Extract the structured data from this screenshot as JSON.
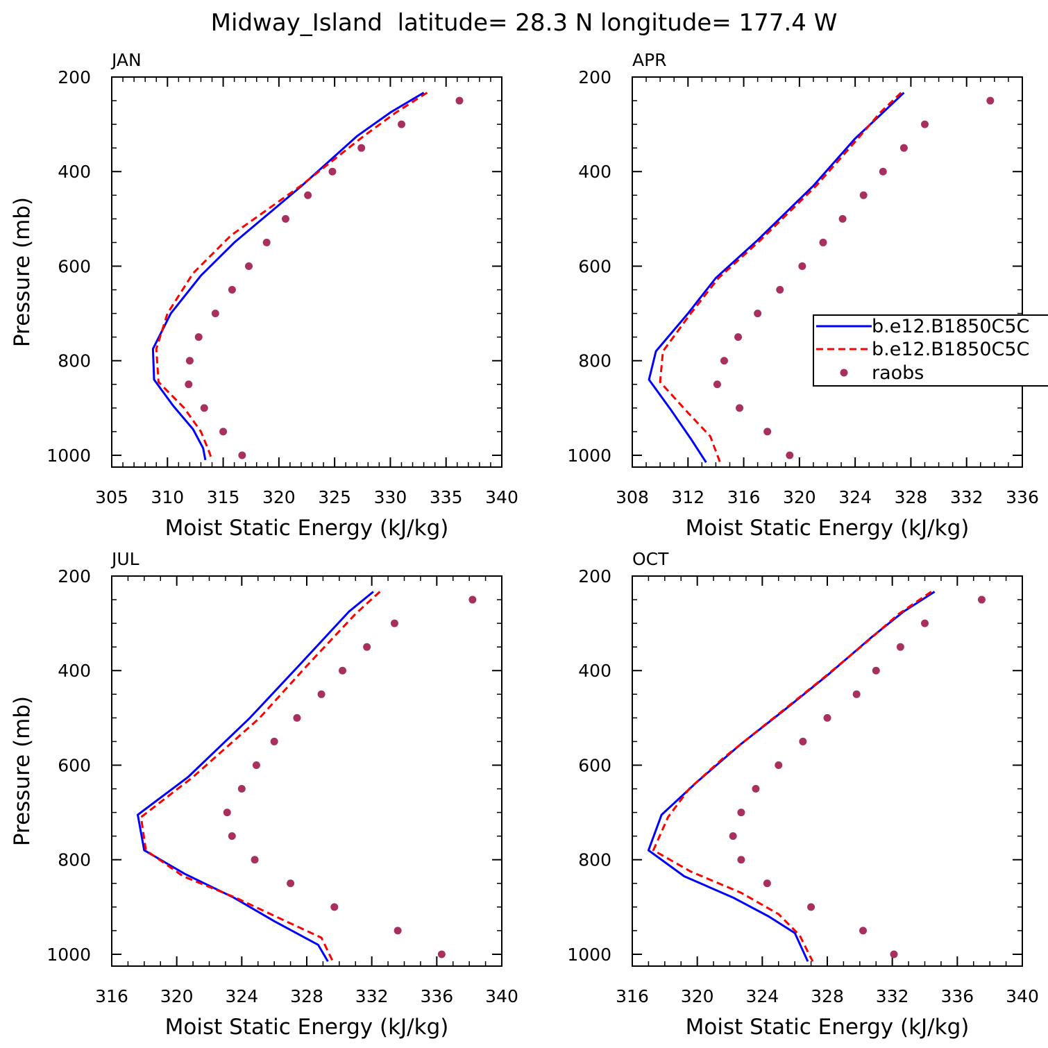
{
  "figure": {
    "title": "Midway_Island  latitude= 28.3 N longitude= 177.4 W"
  },
  "legend": {
    "entries": [
      {
        "label": "b.e12.B1850C5C",
        "color": "#0000ff",
        "style": "solid"
      },
      {
        "label": "b.e12.B1850C5C",
        "color": "#ff0000",
        "style": "dashed"
      },
      {
        "label": "raobs",
        "color": "#a8305f",
        "style": "dot"
      }
    ]
  },
  "chart_data": [
    {
      "type": "line",
      "panel": "JAN",
      "xlabel": "Moist Static Energy (kJ/kg)",
      "ylabel": "Pressure (mb)",
      "xlim": [
        305,
        340
      ],
      "xticks": [
        305,
        310,
        315,
        320,
        325,
        330,
        335,
        340
      ],
      "xminor": 1,
      "ylim": [
        1025,
        200
      ],
      "yticks": [
        200,
        400,
        600,
        800,
        1000
      ],
      "yminor": 50,
      "series": [
        {
          "color": "#0000ff",
          "style": "solid",
          "points": [
            [
              333,
              233
            ],
            [
              330,
              275
            ],
            [
              327,
              325
            ],
            [
              322,
              431
            ],
            [
              316,
              550
            ],
            [
              313,
              620
            ],
            [
              310.3,
              700
            ],
            [
              308.7,
              775
            ],
            [
              308.8,
              840
            ],
            [
              310.5,
              895
            ],
            [
              312.3,
              945
            ],
            [
              313.2,
              985
            ],
            [
              313.4,
              1010
            ]
          ]
        },
        {
          "color": "#ff0000",
          "style": "dashed",
          "points": [
            [
              333.3,
              233
            ],
            [
              330.5,
              275
            ],
            [
              327.6,
              325
            ],
            [
              321.9,
              431
            ],
            [
              315.7,
              535
            ],
            [
              312.3,
              615
            ],
            [
              310,
              700
            ],
            [
              309,
              775
            ],
            [
              309.2,
              845
            ],
            [
              311.5,
              900
            ],
            [
              313,
              950
            ],
            [
              313.7,
              990
            ],
            [
              314,
              1010
            ]
          ]
        },
        {
          "color": "#a8305f",
          "style": "dot",
          "points": [
            [
              336.2,
              250
            ],
            [
              331,
              300
            ],
            [
              327.4,
              350
            ],
            [
              324.8,
              400
            ],
            [
              322.6,
              450
            ],
            [
              320.6,
              500
            ],
            [
              318.9,
              550
            ],
            [
              317.3,
              600
            ],
            [
              315.8,
              650
            ],
            [
              314.3,
              700
            ],
            [
              312.8,
              750
            ],
            [
              312,
              800
            ],
            [
              311.9,
              850
            ],
            [
              313.3,
              900
            ],
            [
              315,
              950
            ],
            [
              316.7,
              1000
            ]
          ]
        }
      ]
    },
    {
      "type": "line",
      "panel": "APR",
      "xlabel": "Moist Static Energy (kJ/kg)",
      "ylabel": "",
      "xlim": [
        308,
        336
      ],
      "xticks": [
        308,
        312,
        316,
        320,
        324,
        328,
        332,
        336
      ],
      "xminor": 1,
      "ylim": [
        1025,
        200
      ],
      "yticks": [
        200,
        400,
        600,
        800,
        1000
      ],
      "yminor": 50,
      "series": [
        {
          "color": "#0000ff",
          "style": "solid",
          "points": [
            [
              327.5,
              233
            ],
            [
              326,
              275
            ],
            [
              324,
              330
            ],
            [
              321,
              430
            ],
            [
              317,
              545
            ],
            [
              314,
              625
            ],
            [
              312,
              700
            ],
            [
              309.7,
              780
            ],
            [
              309.2,
              840
            ],
            [
              310.8,
              905
            ],
            [
              312.2,
              965
            ],
            [
              313.3,
              1015
            ]
          ]
        },
        {
          "color": "#ff0000",
          "style": "dashed",
          "points": [
            [
              327.3,
              233
            ],
            [
              325.8,
              275
            ],
            [
              324.2,
              330
            ],
            [
              321.2,
              430
            ],
            [
              317.2,
              545
            ],
            [
              314.2,
              625
            ],
            [
              312.2,
              700
            ],
            [
              310.2,
              780
            ],
            [
              310,
              845
            ],
            [
              312,
              910
            ],
            [
              313.6,
              960
            ],
            [
              314.3,
              1015
            ]
          ]
        },
        {
          "color": "#a8305f",
          "style": "dot",
          "points": [
            [
              333.7,
              250
            ],
            [
              329,
              300
            ],
            [
              327.5,
              350
            ],
            [
              326,
              400
            ],
            [
              324.6,
              450
            ],
            [
              323.1,
              500
            ],
            [
              321.7,
              550
            ],
            [
              320.2,
              600
            ],
            [
              318.6,
              650
            ],
            [
              317,
              700
            ],
            [
              315.6,
              750
            ],
            [
              314.6,
              800
            ],
            [
              314.1,
              850
            ],
            [
              315.7,
              900
            ],
            [
              317.7,
              950
            ],
            [
              319.3,
              1000
            ]
          ]
        }
      ]
    },
    {
      "type": "line",
      "panel": "JUL",
      "xlabel": "Moist Static Energy (kJ/kg)",
      "ylabel": "Pressure (mb)",
      "xlim": [
        316,
        340
      ],
      "xticks": [
        316,
        320,
        324,
        328,
        332,
        336,
        340
      ],
      "xminor": 1,
      "ylim": [
        1025,
        200
      ],
      "yticks": [
        200,
        400,
        600,
        800,
        1000
      ],
      "yminor": 50,
      "series": [
        {
          "color": "#0000ff",
          "style": "solid",
          "points": [
            [
              332.1,
              233
            ],
            [
              330.6,
              275
            ],
            [
              327.5,
              390
            ],
            [
              324.5,
              500
            ],
            [
              320.7,
              625
            ],
            [
              317.6,
              705
            ],
            [
              318,
              780
            ],
            [
              320.5,
              830
            ],
            [
              323.5,
              880
            ],
            [
              326,
              930
            ],
            [
              328.7,
              980
            ],
            [
              329.3,
              1015
            ]
          ]
        },
        {
          "color": "#ff0000",
          "style": "dashed",
          "points": [
            [
              332.5,
              233
            ],
            [
              331,
              280
            ],
            [
              328,
              390
            ],
            [
              325.1,
              500
            ],
            [
              321,
              625
            ],
            [
              317.8,
              710
            ],
            [
              318.1,
              780
            ],
            [
              320.4,
              835
            ],
            [
              323.6,
              880
            ],
            [
              326.4,
              925
            ],
            [
              328.9,
              965
            ],
            [
              329.6,
              1015
            ]
          ]
        },
        {
          "color": "#a8305f",
          "style": "dot",
          "points": [
            [
              338.2,
              250
            ],
            [
              333.4,
              300
            ],
            [
              331.7,
              350
            ],
            [
              330.2,
              400
            ],
            [
              328.9,
              450
            ],
            [
              327.4,
              500
            ],
            [
              326,
              550
            ],
            [
              324.9,
              600
            ],
            [
              324,
              650
            ],
            [
              323.1,
              700
            ],
            [
              323.4,
              750
            ],
            [
              324.8,
              800
            ],
            [
              327,
              850
            ],
            [
              329.7,
              900
            ],
            [
              333.6,
              950
            ],
            [
              336.3,
              1000
            ]
          ]
        }
      ]
    },
    {
      "type": "line",
      "panel": "OCT",
      "xlabel": "Moist Static Energy (kJ/kg)",
      "ylabel": "",
      "xlim": [
        316,
        340
      ],
      "xticks": [
        316,
        320,
        324,
        328,
        332,
        336,
        340
      ],
      "xminor": 1,
      "ylim": [
        1025,
        200
      ],
      "yticks": [
        200,
        400,
        600,
        800,
        1000
      ],
      "yminor": 50,
      "series": [
        {
          "color": "#0000ff",
          "style": "solid",
          "points": [
            [
              334.6,
              233
            ],
            [
              332.7,
              275
            ],
            [
              330.7,
              330
            ],
            [
              328,
              410
            ],
            [
              325.3,
              485
            ],
            [
              322.7,
              555
            ],
            [
              320,
              635
            ],
            [
              317.8,
              705
            ],
            [
              317,
              780
            ],
            [
              319.2,
              835
            ],
            [
              322.2,
              880
            ],
            [
              324.4,
              920
            ],
            [
              326,
              955
            ],
            [
              326.8,
              1015
            ]
          ]
        },
        {
          "color": "#ff0000",
          "style": "dashed",
          "points": [
            [
              334.4,
              233
            ],
            [
              332.4,
              280
            ],
            [
              330.4,
              340
            ],
            [
              327.6,
              420
            ],
            [
              324.7,
              500
            ],
            [
              321.6,
              585
            ],
            [
              319.5,
              650
            ],
            [
              318.2,
              710
            ],
            [
              317.3,
              780
            ],
            [
              319.6,
              825
            ],
            [
              322.7,
              870
            ],
            [
              325,
              915
            ],
            [
              326.3,
              960
            ],
            [
              327.1,
              1015
            ]
          ]
        },
        {
          "color": "#a8305f",
          "style": "dot",
          "points": [
            [
              337.5,
              250
            ],
            [
              334,
              300
            ],
            [
              332.5,
              350
            ],
            [
              331,
              400
            ],
            [
              329.8,
              450
            ],
            [
              328,
              500
            ],
            [
              326.5,
              550
            ],
            [
              325,
              600
            ],
            [
              323.6,
              650
            ],
            [
              322.7,
              700
            ],
            [
              322.2,
              750
            ],
            [
              322.7,
              800
            ],
            [
              324.3,
              850
            ],
            [
              327,
              900
            ],
            [
              330.2,
              950
            ],
            [
              332.1,
              1000
            ]
          ]
        }
      ]
    }
  ]
}
